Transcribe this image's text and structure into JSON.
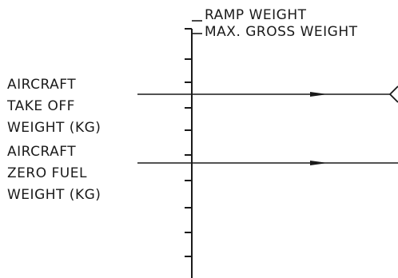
{
  "axis_labels": {
    "ramp_weight": "RAMP WEIGHT",
    "max_gross_weight": "MAX. GROSS WEIGHT"
  },
  "inputs": {
    "takeoff": [
      "AIRCRAFT",
      "TAKE OFF",
      "WEIGHT (KG)"
    ],
    "zero_fuel": [
      "AIRCRAFT",
      "ZERO FUEL",
      "WEIGHT (KG)"
    ]
  }
}
